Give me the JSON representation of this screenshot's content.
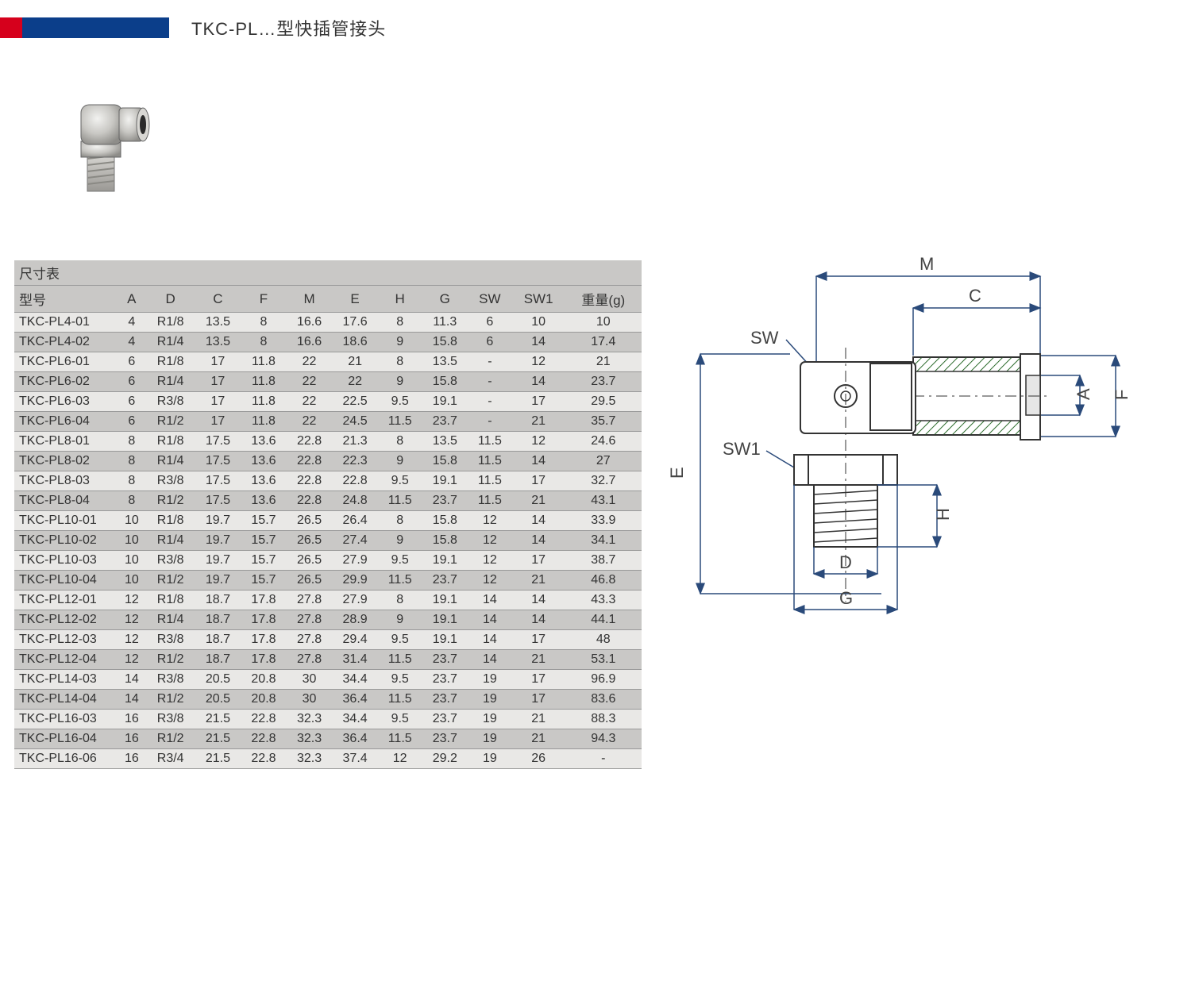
{
  "title": "TKC-PL…型快插管接头",
  "table": {
    "caption": "尺寸表",
    "columns": [
      "型号",
      "A",
      "D",
      "C",
      "F",
      "M",
      "E",
      "H",
      "G",
      "SW",
      "SW1",
      "重量(g)"
    ],
    "rows": [
      [
        "TKC-PL4-01",
        "4",
        "R1/8",
        "13.5",
        "8",
        "16.6",
        "17.6",
        "8",
        "11.3",
        "6",
        "10",
        "10"
      ],
      [
        "TKC-PL4-02",
        "4",
        "R1/4",
        "13.5",
        "8",
        "16.6",
        "18.6",
        "9",
        "15.8",
        "6",
        "14",
        "17.4"
      ],
      [
        "TKC-PL6-01",
        "6",
        "R1/8",
        "17",
        "11.8",
        "22",
        "21",
        "8",
        "13.5",
        "-",
        "12",
        "21"
      ],
      [
        "TKC-PL6-02",
        "6",
        "R1/4",
        "17",
        "11.8",
        "22",
        "22",
        "9",
        "15.8",
        "-",
        "14",
        "23.7"
      ],
      [
        "TKC-PL6-03",
        "6",
        "R3/8",
        "17",
        "11.8",
        "22",
        "22.5",
        "9.5",
        "19.1",
        "-",
        "17",
        "29.5"
      ],
      [
        "TKC-PL6-04",
        "6",
        "R1/2",
        "17",
        "11.8",
        "22",
        "24.5",
        "11.5",
        "23.7",
        "-",
        "21",
        "35.7"
      ],
      [
        "TKC-PL8-01",
        "8",
        "R1/8",
        "17.5",
        "13.6",
        "22.8",
        "21.3",
        "8",
        "13.5",
        "11.5",
        "12",
        "24.6"
      ],
      [
        "TKC-PL8-02",
        "8",
        "R1/4",
        "17.5",
        "13.6",
        "22.8",
        "22.3",
        "9",
        "15.8",
        "11.5",
        "14",
        "27"
      ],
      [
        "TKC-PL8-03",
        "8",
        "R3/8",
        "17.5",
        "13.6",
        "22.8",
        "22.8",
        "9.5",
        "19.1",
        "11.5",
        "17",
        "32.7"
      ],
      [
        "TKC-PL8-04",
        "8",
        "R1/2",
        "17.5",
        "13.6",
        "22.8",
        "24.8",
        "11.5",
        "23.7",
        "11.5",
        "21",
        "43.1"
      ],
      [
        "TKC-PL10-01",
        "10",
        "R1/8",
        "19.7",
        "15.7",
        "26.5",
        "26.4",
        "8",
        "15.8",
        "12",
        "14",
        "33.9"
      ],
      [
        "TKC-PL10-02",
        "10",
        "R1/4",
        "19.7",
        "15.7",
        "26.5",
        "27.4",
        "9",
        "15.8",
        "12",
        "14",
        "34.1"
      ],
      [
        "TKC-PL10-03",
        "10",
        "R3/8",
        "19.7",
        "15.7",
        "26.5",
        "27.9",
        "9.5",
        "19.1",
        "12",
        "17",
        "38.7"
      ],
      [
        "TKC-PL10-04",
        "10",
        "R1/2",
        "19.7",
        "15.7",
        "26.5",
        "29.9",
        "11.5",
        "23.7",
        "12",
        "21",
        "46.8"
      ],
      [
        "TKC-PL12-01",
        "12",
        "R1/8",
        "18.7",
        "17.8",
        "27.8",
        "27.9",
        "8",
        "19.1",
        "14",
        "14",
        "43.3"
      ],
      [
        "TKC-PL12-02",
        "12",
        "R1/4",
        "18.7",
        "17.8",
        "27.8",
        "28.9",
        "9",
        "19.1",
        "14",
        "14",
        "44.1"
      ],
      [
        "TKC-PL12-03",
        "12",
        "R3/8",
        "18.7",
        "17.8",
        "27.8",
        "29.4",
        "9.5",
        "19.1",
        "14",
        "17",
        "48"
      ],
      [
        "TKC-PL12-04",
        "12",
        "R1/2",
        "18.7",
        "17.8",
        "27.8",
        "31.4",
        "11.5",
        "23.7",
        "14",
        "21",
        "53.1"
      ],
      [
        "TKC-PL14-03",
        "14",
        "R3/8",
        "20.5",
        "20.8",
        "30",
        "34.4",
        "9.5",
        "23.7",
        "19",
        "17",
        "96.9"
      ],
      [
        "TKC-PL14-04",
        "14",
        "R1/2",
        "20.5",
        "20.8",
        "30",
        "36.4",
        "11.5",
        "23.7",
        "19",
        "17",
        "83.6"
      ],
      [
        "TKC-PL16-03",
        "16",
        "R3/8",
        "21.5",
        "22.8",
        "32.3",
        "34.4",
        "9.5",
        "23.7",
        "19",
        "21",
        "88.3"
      ],
      [
        "TKC-PL16-04",
        "16",
        "R1/2",
        "21.5",
        "22.8",
        "32.3",
        "36.4",
        "11.5",
        "23.7",
        "19",
        "21",
        "94.3"
      ],
      [
        "TKC-PL16-06",
        "16",
        "R3/4",
        "21.5",
        "22.8",
        "32.3",
        "37.4",
        "12",
        "29.2",
        "19",
        "26",
        "-"
      ]
    ]
  },
  "diagram_labels": {
    "M": "M",
    "C": "C",
    "SW": "SW",
    "SW1": "SW1",
    "A": "A",
    "F": "F",
    "E": "E",
    "H": "H",
    "D": "D",
    "G": "G"
  },
  "colors": {
    "red": "#d6001c",
    "blue": "#0b3e8a",
    "row_dark": "#c9c8c6",
    "row_light": "#e9e8e6",
    "dimline": "#2a4a7a",
    "bodyline": "#333"
  }
}
